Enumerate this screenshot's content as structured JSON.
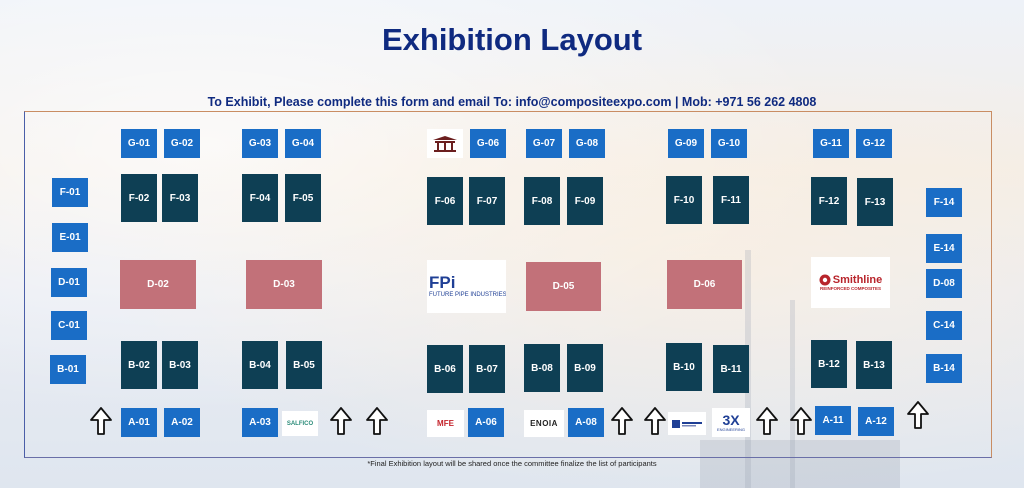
{
  "title": "Exhibition Layout",
  "subtitle": "To Exhibit, Please complete this form and email To: info@compositeexpo.com | Mob: +971 56 262 4808",
  "footnote": "*Final Exhibition layout will be shared once the committee finalize the list of participants",
  "colors": {
    "title": "#0f2a80",
    "booth_small": "#1a6dc6",
    "booth_large": "#0e3f54",
    "booth_island": "#c27179"
  },
  "booths": {
    "g_row": [
      "G-01",
      "G-02",
      "G-03",
      "G-04",
      "G-06",
      "G-07",
      "G-08",
      "G-09",
      "G-10",
      "G-11",
      "G-12"
    ],
    "f_row": [
      "F-02",
      "F-03",
      "F-04",
      "F-05",
      "F-06",
      "F-07",
      "F-08",
      "F-09",
      "F-10",
      "F-11",
      "F-12",
      "F-13"
    ],
    "islands": [
      "D-02",
      "D-03",
      "D-05",
      "D-06"
    ],
    "b_row": [
      "B-02",
      "B-03",
      "B-04",
      "B-05",
      "B-06",
      "B-07",
      "B-08",
      "B-09",
      "B-10",
      "B-11",
      "B-12",
      "B-13"
    ],
    "a_row": [
      "A-01",
      "A-02",
      "A-03",
      "A-06",
      "A-08",
      "A-11",
      "A-12"
    ],
    "left_col": [
      "F-01",
      "E-01",
      "D-01",
      "C-01",
      "B-01"
    ],
    "right_col": [
      "F-14",
      "E-14",
      "D-08",
      "C-14",
      "B-14"
    ]
  },
  "logos": {
    "future_pipe": {
      "mark": "FPi",
      "name": "FUTURE PIPE INDUSTRIES"
    },
    "smithline": {
      "name": "Smithline",
      "tagline": "REINFORCED COMPOSITES"
    },
    "salfico": {
      "name": "SALFICO"
    },
    "mfe": {
      "name": "MFE"
    },
    "enoia": {
      "name": "ENOIA"
    },
    "three_x": {
      "mark": "3X",
      "tagline": "ENGINEERING"
    }
  },
  "icons": [
    "up-arrow-icon"
  ]
}
